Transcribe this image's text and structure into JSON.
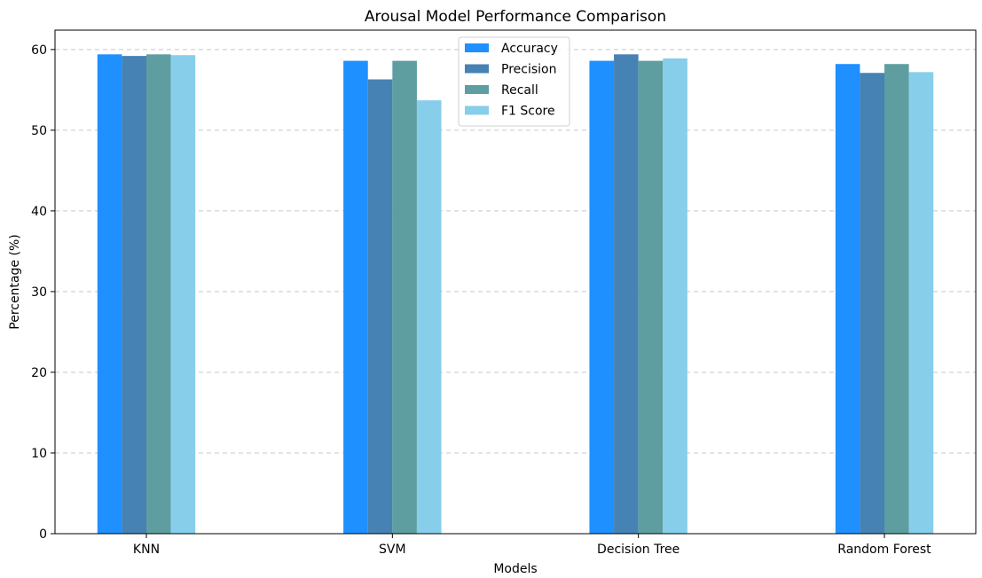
{
  "chart_data": {
    "type": "bar",
    "title": "Arousal Model Performance Comparison",
    "xlabel": "Models",
    "ylabel": "Percentage (%)",
    "categories": [
      "KNN",
      "SVM",
      "Decision Tree",
      "Random Forest"
    ],
    "series": [
      {
        "name": "Accuracy",
        "color": "#1e90ff",
        "values": [
          59.4,
          58.6,
          58.6,
          58.2
        ]
      },
      {
        "name": "Precision",
        "color": "#4682b4",
        "values": [
          59.2,
          56.3,
          59.4,
          57.1
        ]
      },
      {
        "name": "Recall",
        "color": "#5f9ea0",
        "values": [
          59.4,
          58.6,
          58.6,
          58.2
        ]
      },
      {
        "name": "F1 Score",
        "color": "#87ceeb",
        "values": [
          59.3,
          53.7,
          58.9,
          57.2
        ]
      }
    ],
    "ylim": [
      0,
      62.4
    ],
    "yticks": [
      0,
      10,
      20,
      30,
      40,
      50,
      60
    ],
    "grid": "y-dashed",
    "legend_position": "top-center"
  }
}
